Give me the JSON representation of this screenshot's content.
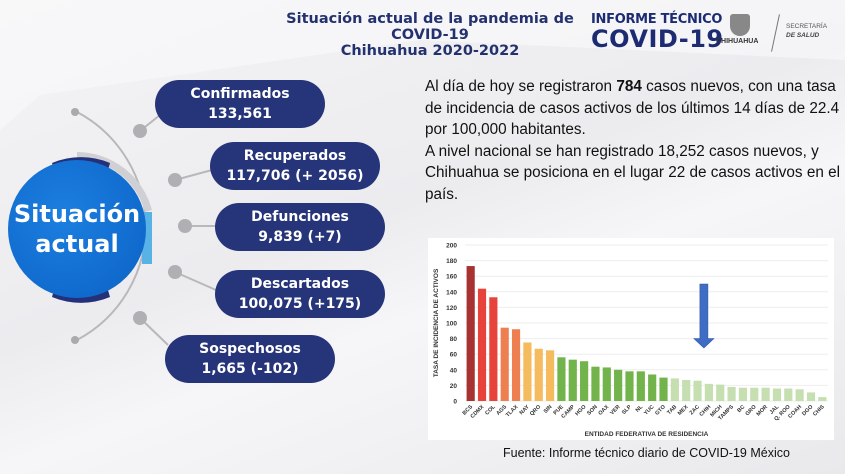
{
  "header": {
    "title_line1": "Situación actual de la pandemia de COVID-19",
    "title_line2": "Chihuahua 2020-2022",
    "informe_label": "INFORME TÉCNICO",
    "covid_label": "COVID-19",
    "chihuahua_logo": "CHIHUAHUA",
    "secretaria_line1": "SECRETARÍA",
    "secretaria_line2": "DE SALUD"
  },
  "center": {
    "line1": "Situación",
    "line2": "actual"
  },
  "stats": [
    {
      "label": "Confirmados",
      "value": "133,561"
    },
    {
      "label": "Recuperados",
      "value": "117,706 (+ 2056)"
    },
    {
      "label": "Defunciones",
      "value": "9,839 (+7)"
    },
    {
      "label": "Descartados",
      "value": "100,075 (+175)"
    },
    {
      "label": "Sospechosos",
      "value": "1,665 (-102)"
    }
  ],
  "summary": {
    "p1_pre": "Al día de hoy se registraron ",
    "p1_num": "784",
    "p1_post": " casos nuevos, con una tasa de incidencia de casos activos de los últimos 14 días de 22.4 por 100,000 habitantes.",
    "p2": "A nivel nacional se han registrado 18,252 casos nuevos, y Chihuahua se posiciona en el lugar 22 de casos activos en el país."
  },
  "colors": {
    "navy": "#26347a",
    "blue": "#0b62c5",
    "arrow": "#3f6dc4"
  },
  "chart_data": {
    "type": "bar",
    "xlabel": "ENTIDAD FEDERATIVA DE RESIDENCIA",
    "ylabel": "TASA DE INCIDENCIA DE ACTIVOS",
    "ylim": [
      0,
      200
    ],
    "yticks": [
      0,
      20,
      40,
      60,
      80,
      100,
      120,
      140,
      160,
      180,
      200
    ],
    "categories": [
      "BCS",
      "CDMX",
      "COL",
      "AGS",
      "TLAX",
      "NAY",
      "QRO",
      "SIN",
      "PUE",
      "CAMP",
      "HGO",
      "SON",
      "OAX",
      "VER",
      "SLP",
      "NL",
      "YUC",
      "GTO",
      "TAB",
      "MEX",
      "ZAC",
      "CHIH",
      "MICH",
      "TAMPS",
      "BC",
      "GRO",
      "MOR",
      "JAL",
      "Q. ROO",
      "COAH",
      "DGO",
      "CHIS"
    ],
    "values": [
      173,
      144,
      133,
      94,
      92,
      75,
      67,
      65,
      56,
      53,
      51,
      44,
      43,
      40,
      38,
      38,
      34,
      30,
      29,
      27,
      26,
      22,
      21,
      18,
      17,
      17,
      17,
      16,
      16,
      15,
      11,
      5
    ],
    "bar_colors": [
      "#a83232",
      "#e8433a",
      "#e8433a",
      "#ee7f50",
      "#ee7f50",
      "#f5bb5c",
      "#f5bb5c",
      "#f5bb5c",
      "#72b34b",
      "#72b34b",
      "#72b34b",
      "#72b34b",
      "#72b34b",
      "#72b34b",
      "#72b34b",
      "#72b34b",
      "#72b34b",
      "#72b34b",
      "#c6dfb1",
      "#c6dfb1",
      "#c6dfb1",
      "#c6dfb1",
      "#c6dfb1",
      "#c6dfb1",
      "#c6dfb1",
      "#c6dfb1",
      "#c6dfb1",
      "#c6dfb1",
      "#c6dfb1",
      "#c6dfb1",
      "#c6dfb1",
      "#c6dfb1"
    ],
    "highlight": "CHIH",
    "grid": true
  },
  "source": "Fuente: Informe técnico diario de COVID-19 México"
}
